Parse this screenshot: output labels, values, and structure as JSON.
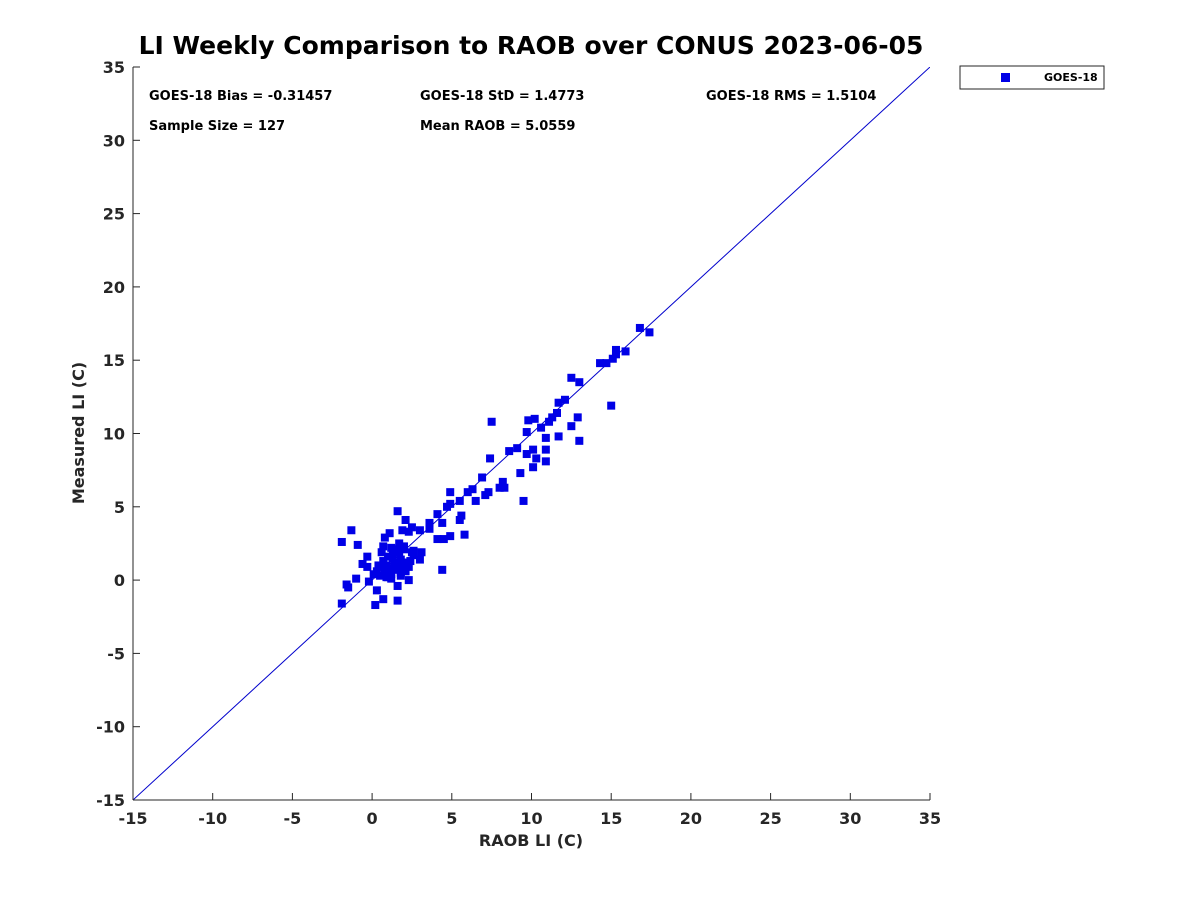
{
  "chart_data": {
    "type": "scatter",
    "title": "LI Weekly Comparison to RAOB over CONUS 2023-06-05",
    "xlabel": "RAOB LI (C)",
    "ylabel": "Measured LI (C)",
    "xlim": [
      -15,
      35
    ],
    "ylim": [
      -15,
      35
    ],
    "xticks": [
      -15,
      -10,
      -5,
      0,
      5,
      10,
      15,
      20,
      25,
      30,
      35
    ],
    "yticks": [
      -15,
      -10,
      -5,
      0,
      5,
      10,
      15,
      20,
      25,
      30,
      35
    ],
    "grid": false,
    "reference_line": {
      "from": [
        -15,
        -15
      ],
      "to": [
        35,
        35
      ],
      "color": "#0000cc"
    },
    "legend": {
      "position": "outside-top-right",
      "entries": [
        "GOES-18"
      ]
    },
    "stats": {
      "bias": "GOES-18 Bias = -0.31457",
      "std": "GOES-18 StD = 1.4773",
      "rms": "GOES-18 RMS = 1.5104",
      "sample_size": "Sample Size = 127",
      "mean_raob": "Mean RAOB = 5.0559"
    },
    "series": [
      {
        "name": "GOES-18",
        "color": "#0000e6",
        "marker": "square",
        "points": [
          [
            -1.9,
            2.6
          ],
          [
            -1.3,
            3.4
          ],
          [
            -0.9,
            2.4
          ],
          [
            -1.6,
            -0.3
          ],
          [
            -1.5,
            -0.5
          ],
          [
            -1.9,
            -1.6
          ],
          [
            -1.0,
            0.1
          ],
          [
            -0.6,
            1.1
          ],
          [
            -0.3,
            1.6
          ],
          [
            -0.3,
            0.9
          ],
          [
            -0.2,
            -0.1
          ],
          [
            0.1,
            0.4
          ],
          [
            0.2,
            -1.7
          ],
          [
            0.4,
            0.9
          ],
          [
            0.3,
            -0.7
          ],
          [
            0.6,
            1.9
          ],
          [
            0.7,
            1.3
          ],
          [
            0.8,
            2.9
          ],
          [
            0.8,
            0.6
          ],
          [
            0.9,
            0.2
          ],
          [
            1.0,
            1.6
          ],
          [
            1.1,
            3.2
          ],
          [
            1.2,
            2.2
          ],
          [
            1.2,
            0.4
          ],
          [
            1.3,
            1.8
          ],
          [
            1.4,
            1.2
          ],
          [
            1.5,
            0.7
          ],
          [
            0.7,
            -1.3
          ],
          [
            1.6,
            4.7
          ],
          [
            1.7,
            2.5
          ],
          [
            1.7,
            1.9
          ],
          [
            1.6,
            -0.4
          ],
          [
            1.8,
            1.4
          ],
          [
            1.8,
            0.3
          ],
          [
            2.0,
            2.3
          ],
          [
            1.6,
            -1.4
          ],
          [
            2.1,
            4.1
          ],
          [
            2.2,
            1.2
          ],
          [
            2.3,
            0.0
          ],
          [
            2.3,
            3.3
          ],
          [
            2.5,
            3.6
          ],
          [
            2.5,
            1.9
          ],
          [
            2.3,
            0.9
          ],
          [
            2.6,
            1.7
          ],
          [
            3.0,
            1.4
          ],
          [
            3.1,
            1.9
          ],
          [
            3.0,
            3.4
          ],
          [
            3.6,
            3.5
          ],
          [
            3.6,
            3.9
          ],
          [
            4.1,
            4.5
          ],
          [
            4.1,
            2.8
          ],
          [
            4.4,
            3.9
          ],
          [
            4.5,
            2.8
          ],
          [
            4.4,
            0.7
          ],
          [
            4.7,
            5.0
          ],
          [
            4.9,
            6.0
          ],
          [
            4.9,
            5.2
          ],
          [
            4.9,
            3.0
          ],
          [
            5.5,
            4.1
          ],
          [
            5.5,
            5.4
          ],
          [
            5.6,
            4.4
          ],
          [
            5.8,
            3.1
          ],
          [
            6.0,
            6.0
          ],
          [
            6.3,
            6.2
          ],
          [
            6.5,
            5.4
          ],
          [
            6.9,
            7.0
          ],
          [
            7.1,
            5.8
          ],
          [
            7.3,
            6.0
          ],
          [
            7.4,
            8.3
          ],
          [
            7.5,
            10.8
          ],
          [
            8.0,
            6.3
          ],
          [
            8.2,
            6.7
          ],
          [
            8.3,
            6.3
          ],
          [
            8.6,
            8.8
          ],
          [
            9.1,
            9.0
          ],
          [
            9.3,
            7.3
          ],
          [
            9.5,
            5.4
          ],
          [
            9.7,
            8.6
          ],
          [
            9.7,
            10.1
          ],
          [
            9.8,
            10.9
          ],
          [
            10.1,
            8.9
          ],
          [
            10.1,
            7.7
          ],
          [
            10.2,
            11.0
          ],
          [
            10.3,
            8.3
          ],
          [
            10.6,
            10.4
          ],
          [
            10.9,
            9.7
          ],
          [
            10.9,
            8.9
          ],
          [
            10.9,
            8.1
          ],
          [
            11.1,
            10.8
          ],
          [
            11.3,
            11.1
          ],
          [
            11.6,
            11.4
          ],
          [
            11.7,
            12.1
          ],
          [
            11.7,
            9.8
          ],
          [
            12.1,
            12.3
          ],
          [
            12.5,
            13.8
          ],
          [
            12.5,
            10.5
          ],
          [
            12.9,
            11.1
          ],
          [
            13.0,
            13.5
          ],
          [
            13.0,
            9.5
          ],
          [
            14.3,
            14.8
          ],
          [
            14.7,
            14.8
          ],
          [
            15.0,
            11.9
          ],
          [
            15.1,
            15.1
          ],
          [
            15.3,
            15.4
          ],
          [
            15.3,
            15.7
          ],
          [
            15.9,
            15.6
          ],
          [
            16.8,
            17.2
          ],
          [
            17.4,
            16.9
          ],
          [
            1.0,
            0.2
          ],
          [
            1.2,
            0.1
          ],
          [
            0.5,
            0.3
          ],
          [
            1.4,
            2.0
          ],
          [
            1.9,
            1.0
          ],
          [
            2.1,
            0.6
          ],
          [
            0.9,
            1.0
          ],
          [
            1.3,
            1.5
          ],
          [
            1.5,
            1.1
          ],
          [
            2.0,
            2.1
          ],
          [
            0.4,
            1.0
          ],
          [
            1.9,
            3.4
          ],
          [
            2.6,
            2.0
          ],
          [
            0.7,
            2.3
          ],
          [
            1.1,
            0.8
          ],
          [
            1.8,
            0.5
          ],
          [
            2.4,
            1.3
          ],
          [
            0.3,
            0.6
          ],
          [
            1.6,
            2.1
          ]
        ]
      }
    ]
  }
}
